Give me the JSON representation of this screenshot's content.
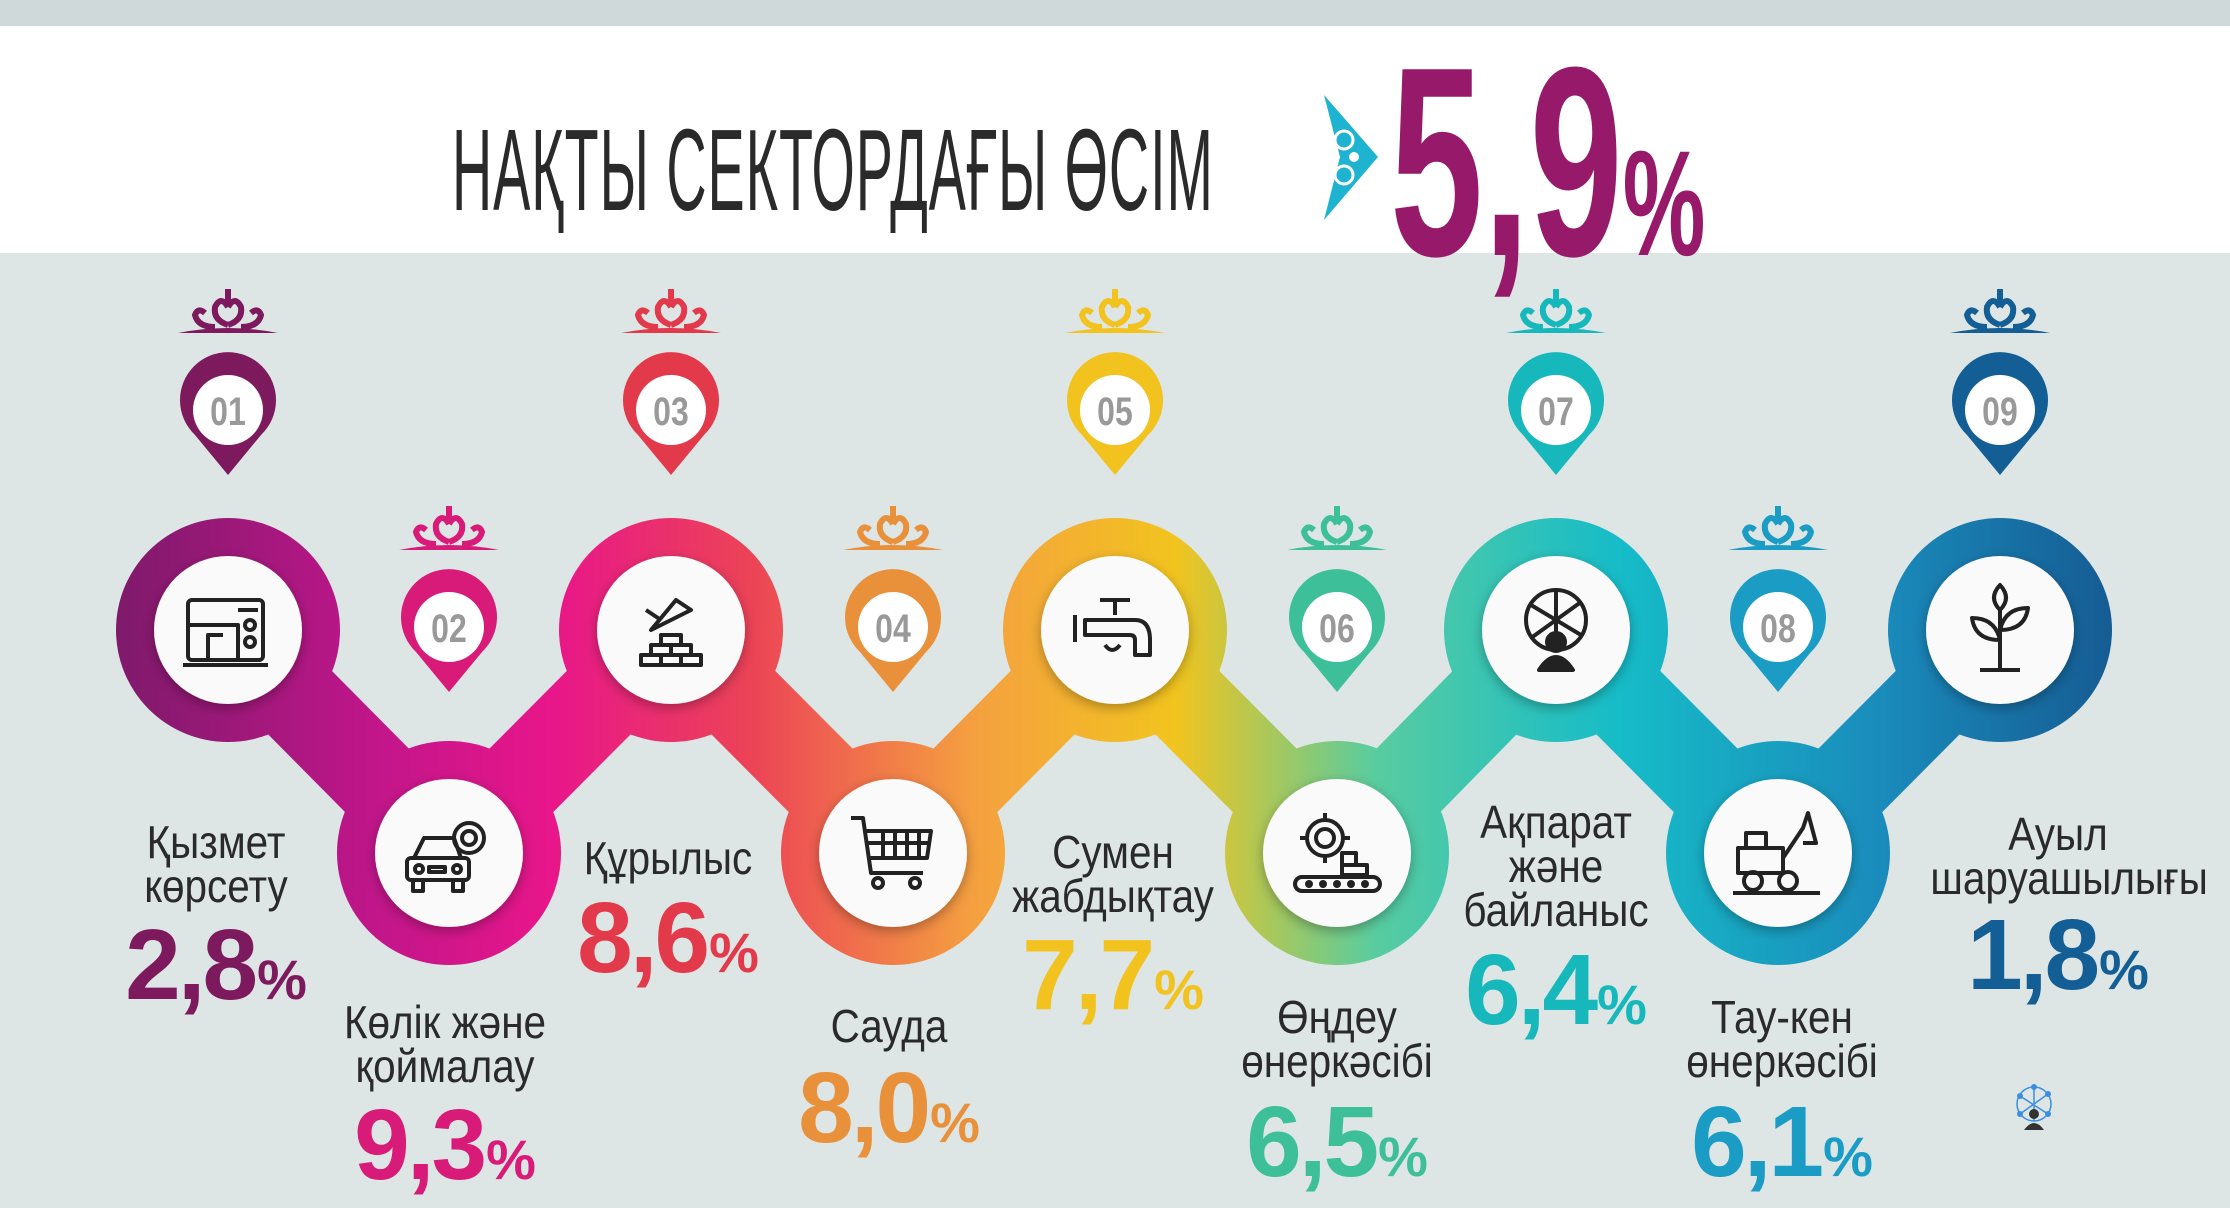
{
  "header": {
    "title": "НАҚТЫ СЕКТОРДАҒЫ ӨСІМ",
    "total_value": "5,9",
    "total_unit": "%",
    "total_color": "#96196a"
  },
  "sectors": [
    {
      "num": "01",
      "label": "Қызмет көрсету",
      "value": "2,8",
      "unit": "%",
      "color": "#7d1a5e",
      "icon": "sewing-machine-icon"
    },
    {
      "num": "02",
      "label": "Көлік және қоймалау",
      "value": "9,3",
      "unit": "%",
      "color": "#d81b78",
      "icon": "car-gear-icon"
    },
    {
      "num": "03",
      "label": "Құрылыс",
      "value": "8,6",
      "unit": "%",
      "color": "#e23a4a",
      "icon": "trowel-bricks-icon"
    },
    {
      "num": "04",
      "label": "Сауда",
      "value": "8,0",
      "unit": "%",
      "color": "#e8903a",
      "icon": "shopping-cart-icon"
    },
    {
      "num": "05",
      "label": "Сумен жабдықтау",
      "value": "7,7",
      "unit": "%",
      "color": "#f2c21e",
      "icon": "water-tap-icon"
    },
    {
      "num": "06",
      "label": "Өңдеу өнеркәсібі",
      "value": "6,5",
      "unit": "%",
      "color": "#3dbf9a",
      "icon": "gear-conveyor-icon"
    },
    {
      "num": "07",
      "label": "Ақпарат және байланыс",
      "value": "6,4",
      "unit": "%",
      "color": "#16b8bb",
      "icon": "network-person-icon"
    },
    {
      "num": "08",
      "label": "Тау-кен өнеркәсібі",
      "value": "6,1",
      "unit": "%",
      "color": "#1a9cc4",
      "icon": "excavator-icon"
    },
    {
      "num": "09",
      "label": "Ауыл шаруашылығы",
      "value": "1,8",
      "unit": "%",
      "color": "#135e94",
      "icon": "plant-icon"
    }
  ]
}
